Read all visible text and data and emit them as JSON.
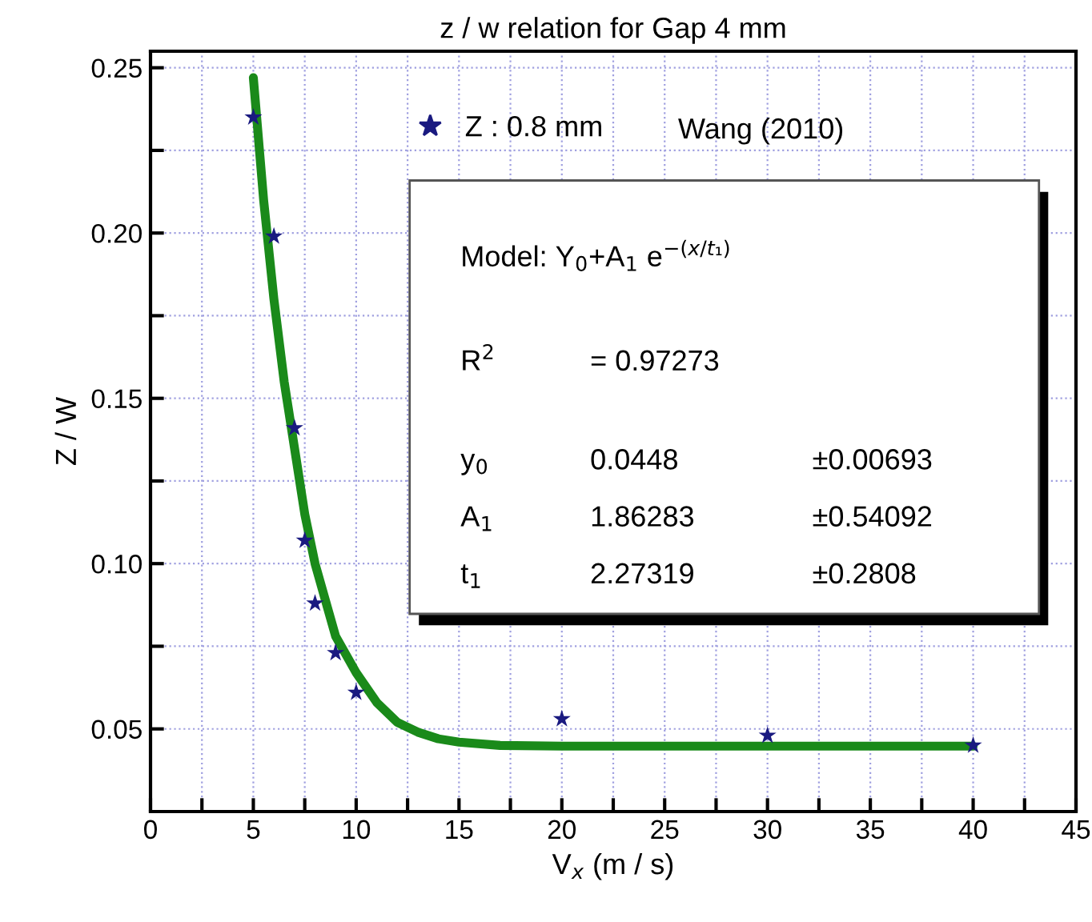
{
  "chart_data": {
    "type": "scatter",
    "title": "z / w relation for Gap 4 mm",
    "xlabel": "V$_{x}$ (m / s)",
    "ylabel": "Z / W",
    "series": [
      {
        "name": "Z : 0.8 mm",
        "marker": "star",
        "color": "#1a1a80",
        "x": [
          5,
          6,
          7,
          7.5,
          8,
          9,
          10,
          20,
          30,
          40
        ],
        "values": [
          0.235,
          0.199,
          0.141,
          0.107,
          0.088,
          0.073,
          0.061,
          0.053,
          0.048,
          0.045
        ]
      },
      {
        "type": "line",
        "marker": "none",
        "line_style": "solid",
        "color": "#1a8a1a",
        "x": [
          5,
          5.5,
          6,
          6.5,
          7,
          7.5,
          8,
          9,
          10,
          11,
          12,
          13,
          14,
          15,
          17,
          20,
          25,
          30,
          35,
          40
        ],
        "values": [
          0.247,
          0.21,
          0.18,
          0.155,
          0.135,
          0.115,
          0.1,
          0.078,
          0.067,
          0.058,
          0.052,
          0.049,
          0.047,
          0.046,
          0.045,
          0.0448,
          0.0448,
          0.0448,
          0.0448,
          0.0448
        ]
      }
    ],
    "annotations": [
      "Wang (2010)",
      "Model: Y$_{0}$+A$_{1}$ e$^{−(x/t₁)}$",
      "R$^{2}$",
      "= 0.97273",
      "y$_{0}$",
      "0.0448",
      "±0.00693",
      "A$_{1}$",
      "1.86283",
      "±0.54092",
      "t$_{1}$",
      "2.27319",
      "±0.2808"
    ],
    "xlim": [
      0,
      45
    ],
    "ylim": [
      0.025,
      0.255
    ],
    "xticks": [
      0,
      {
        "value": 2.5,
        "label": null
      },
      5,
      {
        "value": 7.5,
        "label": null
      },
      10,
      {
        "value": 12.5,
        "label": null
      },
      15,
      {
        "value": 17.5,
        "label": null
      },
      20,
      {
        "value": 22.5,
        "label": null
      },
      25,
      {
        "value": 27.5,
        "label": null
      },
      30,
      {
        "value": 32.5,
        "label": null
      },
      35,
      {
        "value": 37.5,
        "label": null
      },
      40,
      {
        "value": 42.5,
        "label": null
      },
      45
    ],
    "yticks": [
      {
        "value": 0.05,
        "label": "0.05"
      },
      {
        "value": 0.075,
        "label": null
      },
      {
        "value": 0.1,
        "label": "0.10"
      },
      {
        "value": 0.125,
        "label": null
      },
      {
        "value": 0.15,
        "label": "0.15"
      },
      {
        "value": 0.175,
        "label": null
      },
      {
        "value": 0.2,
        "label": "0.20"
      },
      {
        "value": 0.225,
        "label": null
      },
      {
        "value": 0.25,
        "label": "0.25"
      }
    ],
    "grid": true,
    "legend": "top"
  }
}
